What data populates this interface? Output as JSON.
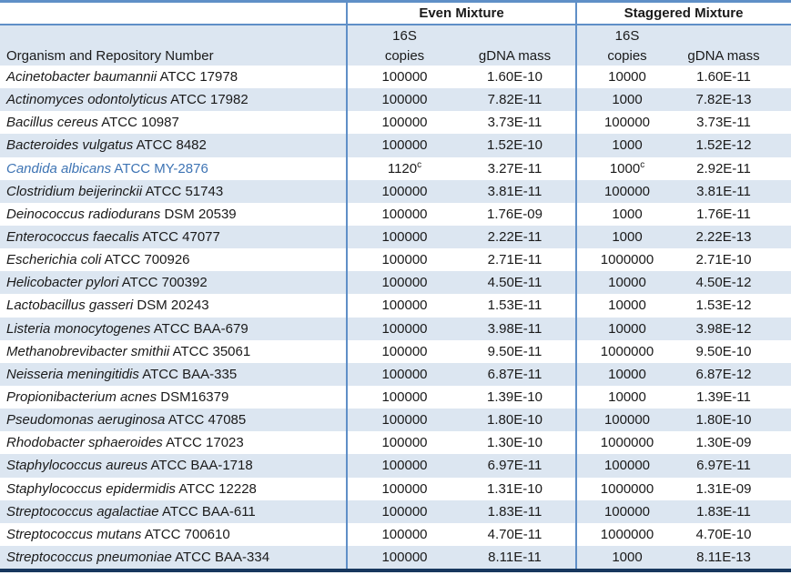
{
  "colors": {
    "line_blue": "#5f8fc7",
    "line_dark": "#17375e",
    "band_blue": "#dce6f1",
    "highlight_blue": "#3e74b4",
    "text": "#1a1a1a"
  },
  "header": {
    "group_labels": [
      "Even Mixture",
      "Staggered Mixture"
    ],
    "organism_col_label": "Organism and Repository Number",
    "copies_label_line1": "16S",
    "copies_label_line2": "copies",
    "gdna_label": "gDNA mass"
  },
  "rows": [
    {
      "name": "Acinetobacter baumannii",
      "repo": "ATCC 17978",
      "even_copies": "100000",
      "even_copies_sup": "",
      "even_gdna": "1.60E-10",
      "stag_copies": "10000",
      "stag_copies_sup": "",
      "stag_gdna": "1.60E-11",
      "highlight": false
    },
    {
      "name": "Actinomyces odontolyticus",
      "repo": "ATCC 17982",
      "even_copies": "100000",
      "even_copies_sup": "",
      "even_gdna": "7.82E-11",
      "stag_copies": "1000",
      "stag_copies_sup": "",
      "stag_gdna": "7.82E-13",
      "highlight": false
    },
    {
      "name": "Bacillus cereus",
      "repo": "ATCC 10987",
      "even_copies": "100000",
      "even_copies_sup": "",
      "even_gdna": "3.73E-11",
      "stag_copies": "100000",
      "stag_copies_sup": "",
      "stag_gdna": "3.73E-11",
      "highlight": false
    },
    {
      "name": "Bacteroides vulgatus",
      "repo": "ATCC 8482",
      "even_copies": "100000",
      "even_copies_sup": "",
      "even_gdna": "1.52E-10",
      "stag_copies": "1000",
      "stag_copies_sup": "",
      "stag_gdna": "1.52E-12",
      "highlight": false
    },
    {
      "name": "Candida albicans",
      "repo": "ATCC MY-2876",
      "even_copies": "1120",
      "even_copies_sup": "c",
      "even_gdna": "3.27E-11",
      "stag_copies": "1000",
      "stag_copies_sup": "c",
      "stag_gdna": "2.92E-11",
      "highlight": true
    },
    {
      "name": "Clostridium beijerinckii",
      "repo": "ATCC 51743",
      "even_copies": "100000",
      "even_copies_sup": "",
      "even_gdna": "3.81E-11",
      "stag_copies": "100000",
      "stag_copies_sup": "",
      "stag_gdna": "3.81E-11",
      "highlight": false
    },
    {
      "name": "Deinococcus radiodurans",
      "repo": "DSM 20539",
      "even_copies": "100000",
      "even_copies_sup": "",
      "even_gdna": "1.76E-09",
      "stag_copies": "1000",
      "stag_copies_sup": "",
      "stag_gdna": "1.76E-11",
      "highlight": false
    },
    {
      "name": "Enterococcus faecalis",
      "repo": "ATCC 47077",
      "even_copies": "100000",
      "even_copies_sup": "",
      "even_gdna": "2.22E-11",
      "stag_copies": "1000",
      "stag_copies_sup": "",
      "stag_gdna": "2.22E-13",
      "highlight": false
    },
    {
      "name": "Escherichia coli",
      "repo": "ATCC 700926",
      "even_copies": "100000",
      "even_copies_sup": "",
      "even_gdna": "2.71E-11",
      "stag_copies": "1000000",
      "stag_copies_sup": "",
      "stag_gdna": "2.71E-10",
      "highlight": false
    },
    {
      "name": "Helicobacter pylori",
      "repo": "ATCC 700392",
      "even_copies": "100000",
      "even_copies_sup": "",
      "even_gdna": "4.50E-11",
      "stag_copies": "10000",
      "stag_copies_sup": "",
      "stag_gdna": "4.50E-12",
      "highlight": false
    },
    {
      "name": "Lactobacillus gasseri",
      "repo": "DSM 20243",
      "even_copies": "100000",
      "even_copies_sup": "",
      "even_gdna": "1.53E-11",
      "stag_copies": "10000",
      "stag_copies_sup": "",
      "stag_gdna": "1.53E-12",
      "highlight": false
    },
    {
      "name": "Listeria monocytogenes",
      "repo": "ATCC BAA-679",
      "even_copies": "100000",
      "even_copies_sup": "",
      "even_gdna": "3.98E-11",
      "stag_copies": "10000",
      "stag_copies_sup": "",
      "stag_gdna": "3.98E-12",
      "highlight": false
    },
    {
      "name": "Methanobrevibacter smithii",
      "repo": "ATCC 35061",
      "even_copies": "100000",
      "even_copies_sup": "",
      "even_gdna": "9.50E-11",
      "stag_copies": "1000000",
      "stag_copies_sup": "",
      "stag_gdna": "9.50E-10",
      "highlight": false
    },
    {
      "name": "Neisseria meningitidis",
      "repo": "ATCC BAA-335",
      "even_copies": "100000",
      "even_copies_sup": "",
      "even_gdna": "6.87E-11",
      "stag_copies": "10000",
      "stag_copies_sup": "",
      "stag_gdna": "6.87E-12",
      "highlight": false
    },
    {
      "name": "Propionibacterium acnes",
      "repo": "DSM16379",
      "even_copies": "100000",
      "even_copies_sup": "",
      "even_gdna": "1.39E-10",
      "stag_copies": "10000",
      "stag_copies_sup": "",
      "stag_gdna": "1.39E-11",
      "highlight": false
    },
    {
      "name": "Pseudomonas aeruginosa",
      "repo": "ATCC 47085",
      "even_copies": "100000",
      "even_copies_sup": "",
      "even_gdna": "1.80E-10",
      "stag_copies": "100000",
      "stag_copies_sup": "",
      "stag_gdna": "1.80E-10",
      "highlight": false
    },
    {
      "name": "Rhodobacter sphaeroides",
      "repo": "ATCC 17023",
      "even_copies": "100000",
      "even_copies_sup": "",
      "even_gdna": "1.30E-10",
      "stag_copies": "1000000",
      "stag_copies_sup": "",
      "stag_gdna": "1.30E-09",
      "highlight": false
    },
    {
      "name": "Staphylococcus aureus",
      "repo": "ATCC BAA-1718",
      "even_copies": "100000",
      "even_copies_sup": "",
      "even_gdna": "6.97E-11",
      "stag_copies": "100000",
      "stag_copies_sup": "",
      "stag_gdna": "6.97E-11",
      "highlight": false
    },
    {
      "name": "Staphylococcus epidermidis",
      "repo": "ATCC 12228",
      "even_copies": "100000",
      "even_copies_sup": "",
      "even_gdna": "1.31E-10",
      "stag_copies": "1000000",
      "stag_copies_sup": "",
      "stag_gdna": "1.31E-09",
      "highlight": false
    },
    {
      "name": "Streptococcus agalactiae",
      "repo": "ATCC BAA-611",
      "even_copies": "100000",
      "even_copies_sup": "",
      "even_gdna": "1.83E-11",
      "stag_copies": "100000",
      "stag_copies_sup": "",
      "stag_gdna": "1.83E-11",
      "highlight": false
    },
    {
      "name": "Streptococcus mutans",
      "repo": "ATCC 700610",
      "even_copies": "100000",
      "even_copies_sup": "",
      "even_gdna": "4.70E-11",
      "stag_copies": "1000000",
      "stag_copies_sup": "",
      "stag_gdna": "4.70E-10",
      "highlight": false
    },
    {
      "name": "Streptococcus pneumoniae",
      "repo": "ATCC BAA-334",
      "even_copies": "100000",
      "even_copies_sup": "",
      "even_gdna": "8.11E-11",
      "stag_copies": "1000",
      "stag_copies_sup": "",
      "stag_gdna": "8.11E-13",
      "highlight": false
    }
  ]
}
